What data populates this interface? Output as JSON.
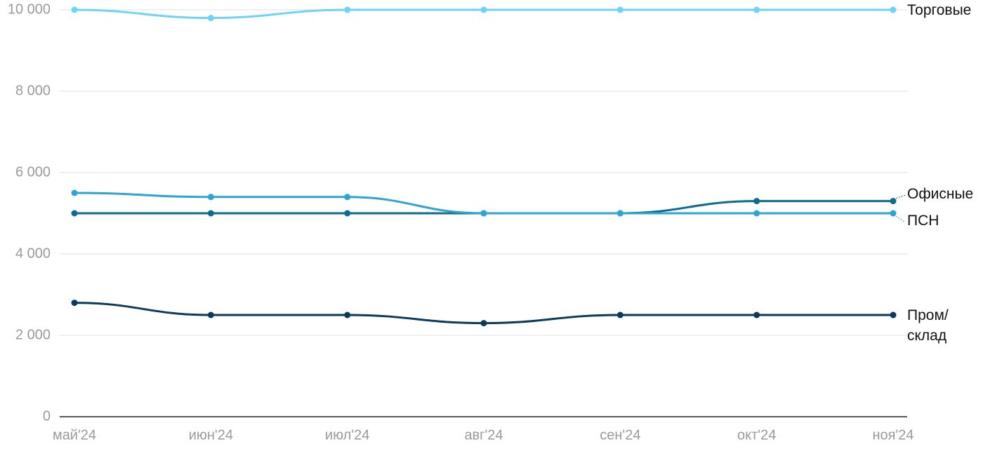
{
  "chart_data": {
    "type": "line",
    "categories": [
      "май'24",
      "июн'24",
      "июл'24",
      "авг'24",
      "сен'24",
      "окт'24",
      "ноя'24"
    ],
    "series": [
      {
        "name": "Торговые",
        "color": "#6dd3f7",
        "values": [
          10000,
          9800,
          10000,
          10000,
          10000,
          10000,
          10000
        ]
      },
      {
        "name": "Офисные",
        "color": "#0d6b92",
        "values": [
          5000,
          5000,
          5000,
          5000,
          5000,
          5300,
          5300
        ]
      },
      {
        "name": "ПСН",
        "color": "#2ea4d1",
        "values": [
          5500,
          5400,
          5400,
          5000,
          5000,
          5000,
          5000
        ]
      },
      {
        "name": "Пром/ склад",
        "color": "#0a3a5c",
        "values": [
          2800,
          2500,
          2500,
          2300,
          2500,
          2500,
          2500
        ]
      }
    ],
    "ylim": [
      0,
      10000
    ],
    "yticks": [
      0,
      {
        "value": 2000,
        "label": "2 000"
      },
      {
        "value": 4000,
        "label": "4 000"
      },
      {
        "value": 6000,
        "label": "6 000"
      },
      {
        "value": 8000,
        "label": "8 000"
      },
      {
        "value": 10000,
        "label": "10 000"
      }
    ],
    "grid": true
  }
}
